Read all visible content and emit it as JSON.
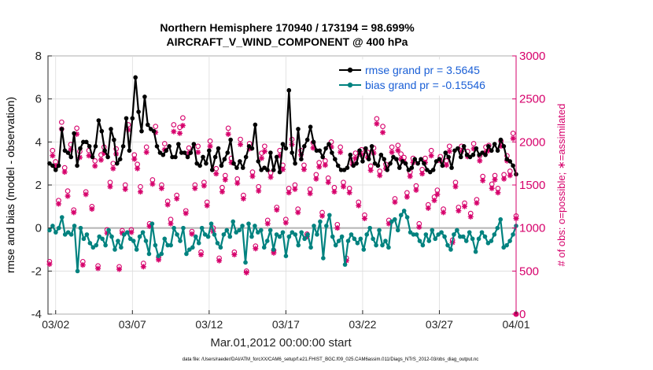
{
  "chart_data": {
    "type": "line",
    "title_line1": "Northern Hemisphere 170940 / 173194 = 98.699%",
    "title_line2": "AIRCRAFT_V_WIND_COMPONENT @ 400 hPa",
    "ylabel_left": "rmse and bias (model - observation)",
    "ylabel_right": "# of obs: o=possible; ∗=assimilated",
    "xlabel": "Mar.01,2012 00:00:00 start",
    "footnote": "data file: /Users/raeder/DAI/ATM_forcXX/CAM6_setup/f.e21.FHIST_BGC.f09_025.CAM6assim.011/Diags_NTrS_2012-03/obs_diag_output.nc",
    "ylim_left": [
      -4,
      8
    ],
    "ylim_right": [
      0,
      3000
    ],
    "xlim_days": [
      0.5,
      31.0
    ],
    "left_ticks": [
      "-4",
      "-2",
      "0",
      "2",
      "4",
      "6",
      "8"
    ],
    "right_ticks": [
      "0",
      "500",
      "1000",
      "1500",
      "2000",
      "2500",
      "3000"
    ],
    "x_ticks": [
      {
        "label": "03/02",
        "day": 1.0
      },
      {
        "label": "03/07",
        "day": 6.0
      },
      {
        "label": "03/12",
        "day": 11.0
      },
      {
        "label": "03/17",
        "day": 16.0
      },
      {
        "label": "03/22",
        "day": 21.0
      },
      {
        "label": "03/27",
        "day": 26.0
      },
      {
        "label": "04/01",
        "day": 31.0
      }
    ],
    "legend": [
      {
        "name": "rmse grand pr = 3.5645",
        "color": "#000000"
      },
      {
        "name": "bias grand pr = -0.15546",
        "color": "#00827f"
      }
    ],
    "series": [
      {
        "name": "rmse",
        "color": "#000000",
        "values": [
          3.0,
          2.9,
          2.7,
          2.9,
          4.6,
          3.6,
          3.5,
          3.3,
          4.4,
          2.9,
          3.7,
          4.0,
          4.0,
          3.8,
          3.3,
          3.8,
          5.0,
          4.5,
          3.6,
          3.3,
          4.6,
          4.1,
          3.0,
          3.2,
          3.8,
          5.1,
          3.6,
          5.1,
          7.0,
          5.4,
          4.5,
          6.1,
          4.8,
          4.6,
          4.5,
          3.8,
          3.5,
          3.4,
          3.6,
          3.8,
          3.3,
          3.3,
          3.9,
          3.5,
          3.5,
          3.3,
          3.5,
          3.9,
          3.0,
          2.9,
          3.3,
          3.0,
          3.6,
          2.7,
          3.3,
          3.7,
          2.9,
          3.2,
          3.5,
          4.1,
          3.0,
          2.8,
          3.1,
          2.8,
          3.3,
          3.8,
          3.7,
          4.8,
          3.1,
          2.7,
          2.8,
          2.7,
          3.5,
          2.7,
          3.3,
          2.6,
          3.9,
          3.7,
          6.4,
          3.5,
          3.0,
          4.6,
          3.2,
          3.8,
          4.1,
          4.7,
          4.0,
          3.6,
          3.6,
          3.3,
          3.7,
          3.9,
          3.5,
          3.2,
          2.9,
          2.7,
          2.7,
          2.8,
          3.4,
          2.9,
          3.0,
          3.6,
          3.1,
          3.7,
          3.2,
          3.8,
          3.0,
          2.9,
          3.4,
          3.2,
          2.7,
          3.0,
          3.3,
          3.2,
          2.8,
          3.1,
          3.0,
          2.7,
          2.8,
          3.2,
          3.0,
          3.2,
          3.0,
          2.7,
          2.6,
          2.7,
          3.1,
          3.2,
          2.9,
          3.5,
          3.3,
          2.8,
          3.6,
          3.7,
          3.3,
          3.8,
          3.4,
          3.3,
          3.4,
          3.7,
          3.4,
          3.5,
          3.4,
          3.8,
          3.6,
          3.9,
          3.6,
          4.1,
          3.8,
          3.2,
          3.1,
          2.9,
          2.5
        ]
      },
      {
        "name": "bias",
        "color": "#00827f",
        "values": [
          -0.1,
          0.1,
          -0.2,
          0.0,
          0.5,
          -0.3,
          -0.2,
          -0.3,
          0.1,
          -2.0,
          0.0,
          -0.5,
          -0.3,
          -0.7,
          -0.9,
          -0.8,
          -0.4,
          -0.5,
          -0.8,
          -0.1,
          -0.4,
          -1.0,
          -0.6,
          -0.9,
          -0.3,
          -0.2,
          -0.5,
          -0.6,
          -1.0,
          -0.4,
          -0.2,
          -0.6,
          -1.2,
          0.2,
          -0.8,
          -1.3,
          -1.2,
          -0.5,
          -0.8,
          -0.8,
          0.0,
          -0.3,
          -0.6,
          0.0,
          -1.2,
          -1.0,
          -0.9,
          -0.4,
          -0.7,
          0.0,
          -0.3,
          -0.4,
          0.2,
          -0.3,
          -0.7,
          -0.9,
          -0.3,
          -0.1,
          -0.4,
          0.3,
          -0.2,
          -0.1,
          0.1,
          -1.6,
          0.2,
          -0.4,
          0.1,
          -0.2,
          -0.1,
          -0.9,
          -0.6,
          -0.1,
          -1.0,
          -0.3,
          -0.4,
          -0.2,
          -1.3,
          -0.4,
          -0.2,
          -0.3,
          -0.8,
          -0.2,
          -0.5,
          -0.3,
          -0.9,
          0.1,
          -0.3,
          0.3,
          -1.4,
          0.1,
          0.6,
          -0.4,
          -0.8,
          -0.6,
          -0.4,
          -1.7,
          -0.6,
          -0.3,
          -0.5,
          -0.7,
          -0.5,
          -1.0,
          -0.3,
          0.0,
          -0.5,
          -0.8,
          -0.1,
          -0.8,
          -0.6,
          -0.9,
          0.3,
          0.4,
          -0.1,
          0.6,
          0.8,
          0.5,
          -0.2,
          -0.3,
          -0.3,
          -0.6,
          -0.8,
          -0.3,
          -0.6,
          -0.1,
          -0.5,
          -0.3,
          -0.2,
          -0.4,
          -0.8,
          -1.0,
          -0.3,
          -0.1,
          -0.4,
          -0.4,
          -0.6,
          -0.2,
          -0.5,
          -1.1,
          -0.5,
          -0.2,
          -0.4,
          -0.7,
          -0.6,
          -0.3,
          0.0,
          0.4,
          -0.9,
          -0.8,
          -0.6,
          -0.3,
          0.1
        ]
      },
      {
        "name": "obs possible",
        "color": "#d6006b",
        "marker": "o",
        "values": [
          610,
          1900,
          1770,
          1320,
          2230,
          1700,
          1430,
          1970,
          1210,
          2160,
          1890,
          610,
          1420,
          1900,
          1250,
          1780,
          560,
          1850,
          1940,
          980,
          1530,
          1750,
          1920,
          550,
          970,
          1500,
          2200,
          980,
          1850,
          1740,
          1480,
          590,
          1940,
          1050,
          1560,
          2180,
          660,
          1500,
          1980,
          1310,
          1100,
          2200,
          1380,
          2170,
          2280,
          1200,
          1930,
          960,
          1500,
          1950,
          720,
          1530,
          1300,
          2010,
          1000,
          1690,
          650,
          1470,
          1610,
          2160,
          1810,
          720,
          1570,
          2030,
          1380,
          500,
          1980,
          1650,
          790,
          1480,
          1870,
          1950,
          1090,
          1640,
          740,
          1240,
          1900,
          1730,
          1100,
          1460,
          2030,
          1500,
          1220,
          1900,
          1730,
          930,
          1450,
          1990,
          1620,
          1760,
          1180,
          1780,
          1580,
          2000,
          1470,
          1040,
          1940,
          1530,
          650,
          1460,
          1790,
          1870,
          1300,
          1910,
          1150,
          1880,
          1720,
          1930,
          2270,
          1660,
          2180,
          1740,
          1090,
          1940,
          1340,
          1960,
          1860,
          1820,
          1410,
          1650,
          1810,
          1490,
          1050,
          1680,
          1810,
          1270,
          1900,
          1360,
          1440,
          1830,
          1220,
          1780,
          1950,
          860,
          1530,
          1240,
          1950,
          1290,
          1890,
          1170,
          1980,
          1330,
          1840,
          1600,
          1940,
          1960,
          1510,
          1610,
          1460,
          2010,
          1620,
          1840,
          1660,
          2100,
          1140
        ]
      },
      {
        "name": "obs assimilated",
        "color": "#d6006b",
        "marker": "*",
        "values": [
          590,
          1850,
          1730,
          1290,
          2160,
          1660,
          1380,
          1920,
          1190,
          2100,
          1830,
          580,
          1400,
          1850,
          1230,
          1730,
          540,
          1800,
          1880,
          950,
          1490,
          1700,
          1870,
          530,
          950,
          1460,
          2150,
          960,
          1810,
          1700,
          1430,
          560,
          1890,
          1030,
          1520,
          2120,
          640,
          1470,
          1920,
          1280,
          1060,
          2130,
          1350,
          2110,
          2200,
          1180,
          1880,
          940,
          1470,
          1890,
          700,
          1500,
          1270,
          1960,
          970,
          1640,
          630,
          1430,
          1570,
          2100,
          1770,
          700,
          1530,
          1980,
          1350,
          490,
          1930,
          1610,
          770,
          1440,
          1820,
          1900,
          1060,
          1600,
          720,
          1220,
          1850,
          1690,
          1070,
          1420,
          1980,
          1460,
          1190,
          1860,
          1690,
          910,
          1410,
          1940,
          1580,
          1720,
          1150,
          1740,
          1540,
          1950,
          1430,
          1010,
          1890,
          1490,
          630,
          1420,
          1750,
          1820,
          1270,
          1860,
          1120,
          1830,
          1680,
          1880,
          2220,
          1620,
          2120,
          1700,
          1060,
          1890,
          1310,
          1910,
          1810,
          1780,
          1370,
          1610,
          1770,
          1450,
          1020,
          1640,
          1770,
          1240,
          1850,
          1330,
          1400,
          1790,
          1190,
          1740,
          1900,
          840,
          1490,
          1210,
          1900,
          1260,
          1840,
          1140,
          1930,
          1300,
          1790,
          1560,
          1890,
          1910,
          1470,
          1570,
          1420,
          1960,
          1580,
          1790,
          1620,
          2050,
          1120
        ]
      }
    ]
  }
}
